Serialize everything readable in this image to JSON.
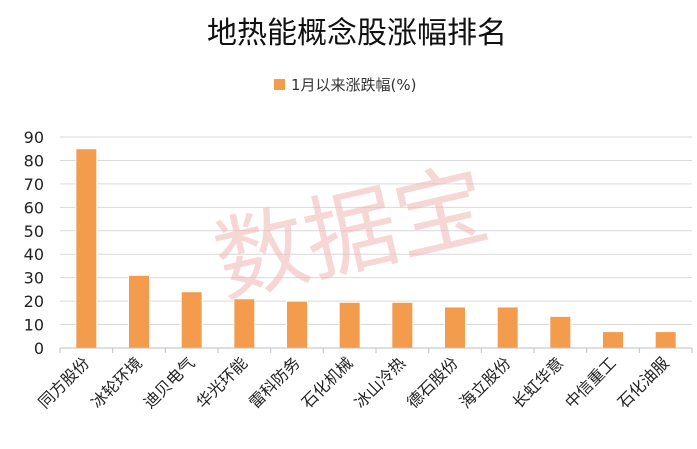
{
  "chart_data": {
    "type": "bar",
    "title": "地热能概念股涨幅排名",
    "categories": [
      "同方股份",
      "冰轮环境",
      "迪贝电气",
      "华光环能",
      "雷科防务",
      "石化机械",
      "冰山冷热",
      "德石股份",
      "海立股份",
      "长虹华意",
      "中信重工",
      "石化油服"
    ],
    "series": [
      {
        "name": "1月以来涨跌幅(%)",
        "values": [
          85,
          31,
          24,
          21,
          20,
          19.5,
          19.5,
          17.5,
          17.5,
          13.5,
          7,
          7
        ]
      }
    ],
    "yticks": [
      "0",
      "10",
      "20",
      "30",
      "40",
      "50",
      "60",
      "70",
      "80",
      "90"
    ],
    "ylim": [
      0,
      90
    ],
    "grid": true,
    "legend_position": "top-center",
    "bar_color": "#f39c4e",
    "bar_edge_color": "#ffffff",
    "grid_color": "#d9d9d9",
    "axis_color": "#bfbfbf"
  },
  "watermark": "数据宝"
}
